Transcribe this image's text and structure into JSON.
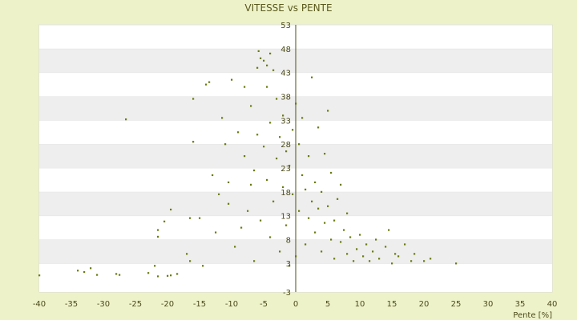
{
  "chart_data": {
    "type": "scatter",
    "title": "VITESSE vs PENTE",
    "xlabel": "Pente [%]",
    "ylabel": "",
    "xlim": [
      -40,
      40
    ],
    "ylim": [
      -3,
      53
    ],
    "x_ticks": [
      "-40",
      "-35",
      "-30",
      "-25",
      "-20",
      "-15",
      "-10",
      "-5",
      "0",
      "5",
      "10",
      "15",
      "20",
      "25",
      "30",
      "35",
      "40"
    ],
    "y_ticks": [
      "-3",
      "3",
      "8",
      "13",
      "18",
      "23",
      "28",
      "33",
      "38",
      "43",
      "48",
      "53"
    ],
    "y_tick_values": [
      -3,
      3,
      8,
      13,
      18,
      23,
      28,
      33,
      38,
      43,
      48,
      53
    ],
    "grid": "horizontal bands",
    "legend": "none",
    "marker_color": "#6b7a10",
    "band_color": "#eeeeee",
    "points": [
      [
        -40,
        0.5
      ],
      [
        -34,
        1.5
      ],
      [
        -33,
        1.2
      ],
      [
        -32,
        2.0
      ],
      [
        -31,
        0.6
      ],
      [
        -28,
        0.8
      ],
      [
        -27.5,
        0.6
      ],
      [
        -26.5,
        33.2
      ],
      [
        -23,
        1.0
      ],
      [
        -22,
        2.5
      ],
      [
        -21.5,
        0.3
      ],
      [
        -20,
        0.4
      ],
      [
        -19.5,
        0.5
      ],
      [
        -18.5,
        0.8
      ],
      [
        -20.5,
        11.8
      ],
      [
        -21.5,
        10.0
      ],
      [
        -21.5,
        8.6
      ],
      [
        -19.5,
        14.3
      ],
      [
        -17,
        5.0
      ],
      [
        -16.5,
        3.5
      ],
      [
        -16.5,
        12.5
      ],
      [
        -16,
        28.5
      ],
      [
        -16,
        37.5
      ],
      [
        -15,
        12.5
      ],
      [
        -14.5,
        2.5
      ],
      [
        -14,
        40.5
      ],
      [
        -13.5,
        41.0
      ],
      [
        -13,
        21.5
      ],
      [
        -12.5,
        9.5
      ],
      [
        -12,
        17.5
      ],
      [
        -11.5,
        33.5
      ],
      [
        -11,
        28.0
      ],
      [
        -10.5,
        20.0
      ],
      [
        -10.5,
        15.5
      ],
      [
        -10,
        41.5
      ],
      [
        -9.5,
        6.5
      ],
      [
        -9,
        30.5
      ],
      [
        -8.5,
        10.5
      ],
      [
        -8,
        25.5
      ],
      [
        -8,
        40.0
      ],
      [
        -7.5,
        14.0
      ],
      [
        -7,
        19.5
      ],
      [
        -7,
        36.0
      ],
      [
        -6.5,
        3.5
      ],
      [
        -6.5,
        22.5
      ],
      [
        -6,
        30.0
      ],
      [
        -6,
        44.0
      ],
      [
        -5.8,
        47.5
      ],
      [
        -5.5,
        12.0
      ],
      [
        -5.5,
        46.0
      ],
      [
        -5,
        27.5
      ],
      [
        -5,
        45.5
      ],
      [
        -4.5,
        20.5
      ],
      [
        -4.5,
        44.5
      ],
      [
        -4.5,
        40.0
      ],
      [
        -4,
        8.5
      ],
      [
        -4,
        32.5
      ],
      [
        -4,
        47.0
      ],
      [
        -3.5,
        16.0
      ],
      [
        -3.5,
        43.5
      ],
      [
        -3,
        25.0
      ],
      [
        -3,
        37.5
      ],
      [
        -2.5,
        5.5
      ],
      [
        -2.5,
        29.5
      ],
      [
        -2,
        19.0
      ],
      [
        -2,
        34.0
      ],
      [
        -1.5,
        11.0
      ],
      [
        -1.5,
        26.5
      ],
      [
        -1,
        2.5
      ],
      [
        -1,
        23.5
      ],
      [
        -0.5,
        31.0
      ],
      [
        -0.5,
        17.5
      ],
      [
        0,
        36.5
      ],
      [
        0,
        4.5
      ],
      [
        0.5,
        28.0
      ],
      [
        0.5,
        14.0
      ],
      [
        1,
        21.5
      ],
      [
        1,
        33.5
      ],
      [
        1.5,
        7.0
      ],
      [
        1.5,
        18.5
      ],
      [
        2,
        25.5
      ],
      [
        2,
        12.5
      ],
      [
        2.5,
        42.0
      ],
      [
        2.5,
        16.0
      ],
      [
        3,
        9.5
      ],
      [
        3,
        20.0
      ],
      [
        3.5,
        14.5
      ],
      [
        3.5,
        31.5
      ],
      [
        4,
        5.5
      ],
      [
        4,
        18.0
      ],
      [
        4.5,
        11.5
      ],
      [
        4.5,
        26.0
      ],
      [
        5,
        15.0
      ],
      [
        5,
        35.0
      ],
      [
        5.5,
        8.0
      ],
      [
        5.5,
        22.0
      ],
      [
        6,
        12.0
      ],
      [
        6,
        4.0
      ],
      [
        6.5,
        16.5
      ],
      [
        7,
        7.5
      ],
      [
        7,
        19.5
      ],
      [
        7.5,
        10.0
      ],
      [
        8,
        5.0
      ],
      [
        8,
        13.5
      ],
      [
        8.5,
        8.5
      ],
      [
        9,
        3.5
      ],
      [
        9.5,
        6.0
      ],
      [
        10,
        9.0
      ],
      [
        10.5,
        4.5
      ],
      [
        11,
        7.0
      ],
      [
        11.5,
        3.5
      ],
      [
        12,
        5.5
      ],
      [
        12.5,
        8.0
      ],
      [
        13,
        4.0
      ],
      [
        14,
        6.5
      ],
      [
        14.5,
        10.0
      ],
      [
        15,
        3.0
      ],
      [
        15.5,
        5.0
      ],
      [
        16,
        4.5
      ],
      [
        17,
        7.0
      ],
      [
        18,
        3.5
      ],
      [
        18.5,
        5.0
      ],
      [
        20,
        3.5
      ],
      [
        21,
        4.0
      ],
      [
        25,
        3.0
      ]
    ]
  }
}
